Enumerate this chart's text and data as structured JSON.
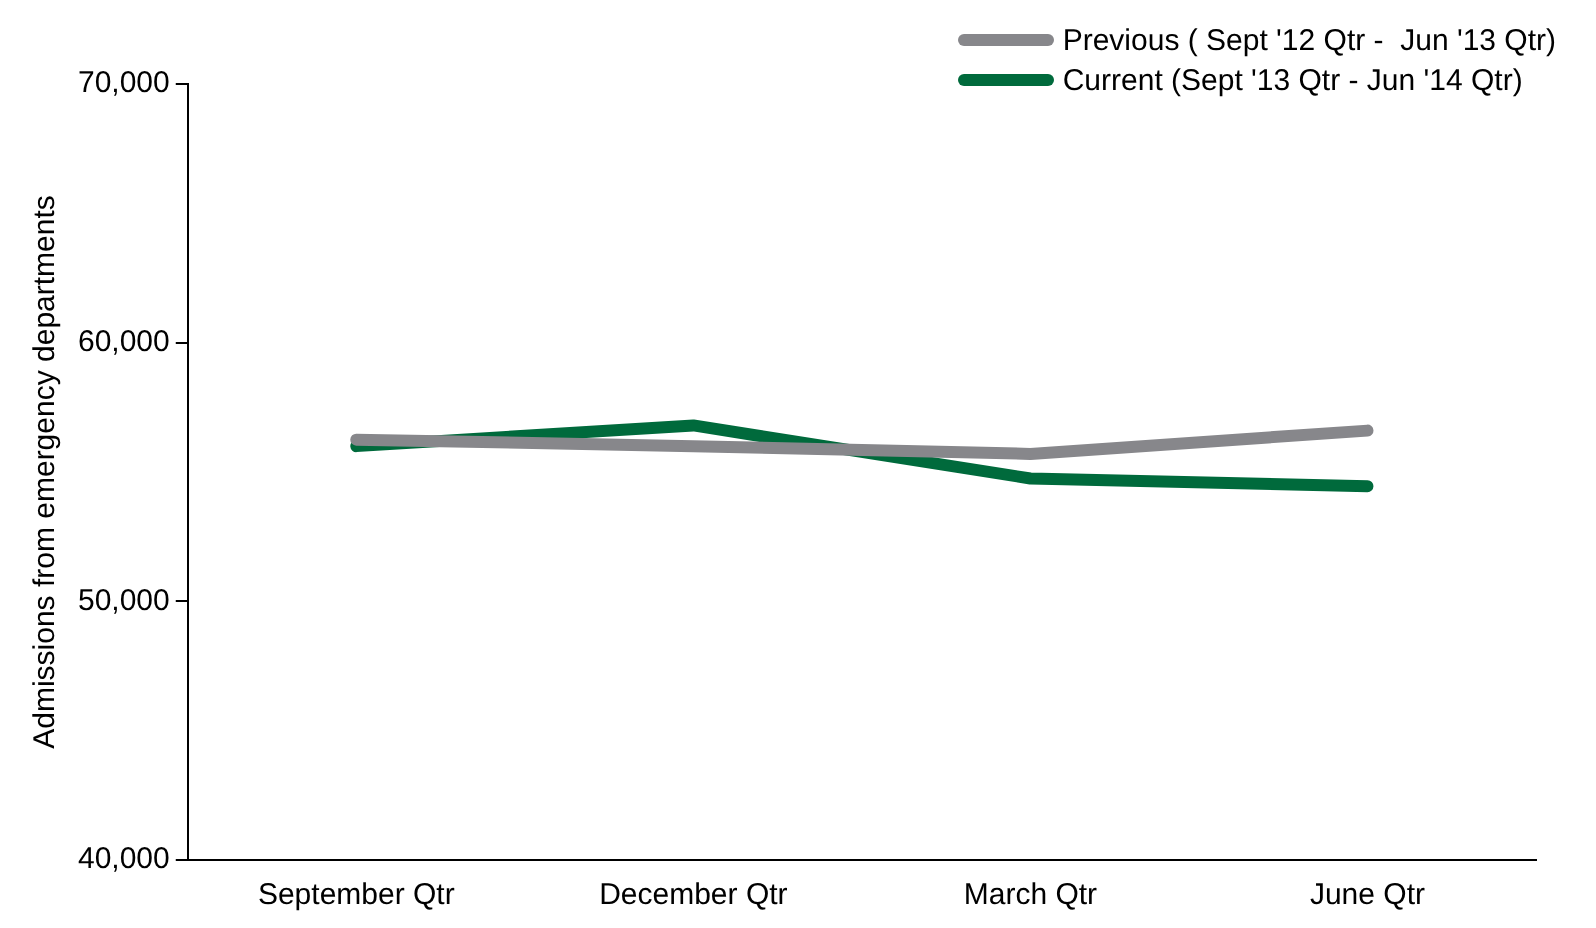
{
  "chart_data": {
    "type": "line",
    "ylabel": "Admissions from emergency departments",
    "categories": [
      "September Qtr",
      "December Qtr",
      "March Qtr",
      "June Qtr"
    ],
    "series": [
      {
        "name": "Previous ( Sept '12 Qtr -  Jun '13 Qtr)",
        "color": "#87878b",
        "values": [
          56250,
          56000,
          55700,
          56600
        ]
      },
      {
        "name": "Current (Sept '13 Qtr - Jun '14 Qtr)",
        "color": "#006a3c",
        "values": [
          56000,
          56800,
          54750,
          54450
        ]
      }
    ],
    "ylim": [
      40000,
      70000
    ],
    "yticks": [
      {
        "value": 40000,
        "label": "40,000"
      },
      {
        "value": 50000,
        "label": "50,000"
      },
      {
        "value": 60000,
        "label": "60,000"
      },
      {
        "value": 70000,
        "label": "70,000"
      }
    ],
    "grid": false,
    "legend": "top right",
    "marker": "none",
    "line_style": "solid"
  }
}
